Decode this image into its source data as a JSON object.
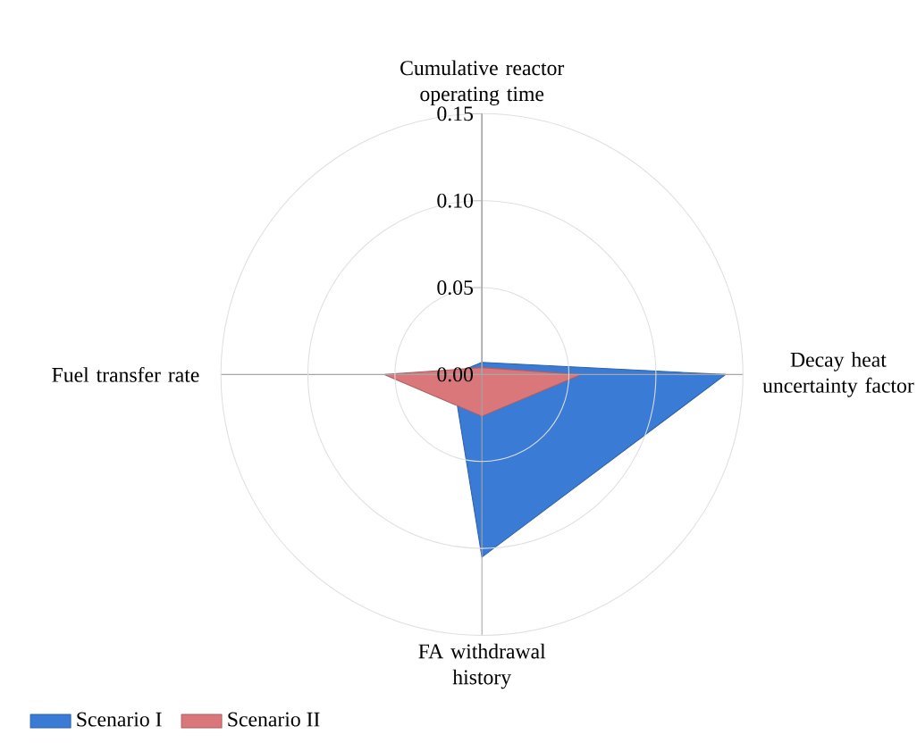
{
  "chart_data": {
    "type": "radar",
    "categories": [
      "Cumulative reactor operating time",
      "Decay heat uncertainty factor",
      "FA withdrawal history",
      "Fuel transfer rate"
    ],
    "series": [
      {
        "name": "Scenario I",
        "color": "#3a7bd5",
        "values": [
          0.007,
          0.14,
          0.105,
          0.017
        ]
      },
      {
        "name": "Scenario II",
        "color": "#d9777a",
        "values": [
          0.004,
          0.057,
          0.024,
          0.056
        ]
      }
    ],
    "ylim": [
      0,
      0.15
    ],
    "yticks": [
      {
        "value": 0,
        "label": "0.00"
      },
      {
        "value": 0.05,
        "label": "0.05"
      },
      {
        "value": 0.1,
        "label": "0.10"
      },
      {
        "value": 0.15,
        "label": "0.15"
      }
    ],
    "legend": "bottom left"
  }
}
